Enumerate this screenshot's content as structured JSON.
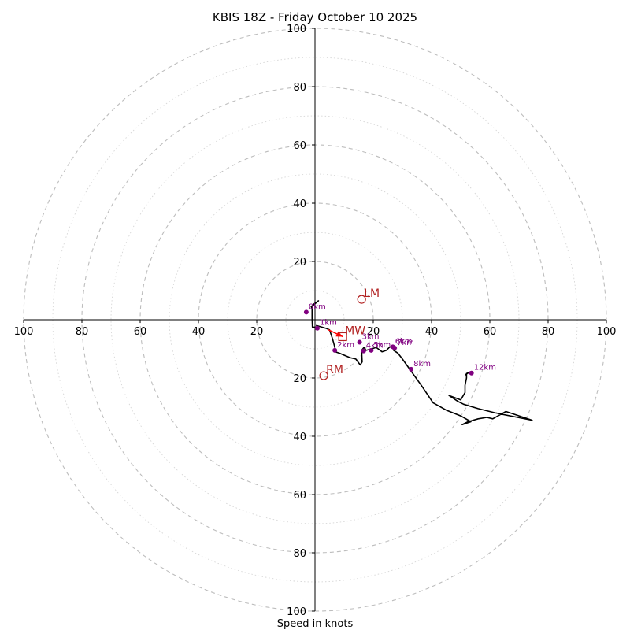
{
  "chart_data": {
    "type": "hodograph",
    "title": "KBIS 18Z - Friday October 10 2025",
    "xlabel": "Speed in knots",
    "ring_major_step": 20,
    "ring_minor_step": 10,
    "max_speed": 100,
    "x_ticks": [
      {
        "value": -100,
        "label": "100"
      },
      {
        "value": -80,
        "label": "80"
      },
      {
        "value": -60,
        "label": "60"
      },
      {
        "value": -40,
        "label": "40"
      },
      {
        "value": -20,
        "label": "20"
      },
      {
        "value": 20,
        "label": "20"
      },
      {
        "value": 40,
        "label": "40"
      },
      {
        "value": 60,
        "label": "60"
      },
      {
        "value": 80,
        "label": "80"
      },
      {
        "value": 100,
        "label": "100"
      }
    ],
    "y_ticks": [
      {
        "value": 100,
        "label": "100"
      },
      {
        "value": 80,
        "label": "80"
      },
      {
        "value": 60,
        "label": "60"
      },
      {
        "value": 40,
        "label": "40"
      },
      {
        "value": 20,
        "label": "20"
      },
      {
        "value": -20,
        "label": "20"
      },
      {
        "value": -40,
        "label": "40"
      },
      {
        "value": -60,
        "label": "60"
      },
      {
        "value": -80,
        "label": "80"
      },
      {
        "value": -100,
        "label": "100"
      }
    ],
    "trace": [
      [
        -1.2,
        4.5
      ],
      [
        0.8,
        6.2
      ],
      [
        1.2,
        6.5
      ],
      [
        -0.5,
        5.3
      ],
      [
        -1.3,
        4.5
      ],
      [
        -1.0,
        3.8
      ],
      [
        -1.0,
        0.5
      ],
      [
        -0.9,
        -2.5
      ],
      [
        1.0,
        -2.6
      ],
      [
        0.9,
        -2.8
      ],
      [
        0.5,
        -2.0
      ],
      [
        4.0,
        -3.0
      ],
      [
        5.0,
        -3.5
      ],
      [
        6.0,
        -6.5
      ],
      [
        6.8,
        -9.5
      ],
      [
        7.0,
        -11.0
      ],
      [
        8.5,
        -11.5
      ],
      [
        12.0,
        -13.0
      ],
      [
        14.0,
        -13.5
      ],
      [
        15.5,
        -15.5
      ],
      [
        16.2,
        -14.5
      ],
      [
        16.0,
        -10.5
      ],
      [
        16.8,
        -9.5
      ],
      [
        17.5,
        -10.5
      ],
      [
        19.5,
        -10.0
      ],
      [
        21.0,
        -9.5
      ],
      [
        23.0,
        -11.0
      ],
      [
        24.5,
        -10.5
      ],
      [
        25.5,
        -9.5
      ],
      [
        26.5,
        -9.0
      ],
      [
        27.0,
        -10.5
      ],
      [
        28.5,
        -11.5
      ],
      [
        30.0,
        -13.5
      ],
      [
        32.5,
        -17.0
      ],
      [
        36.5,
        -22.5
      ],
      [
        40.5,
        -28.5
      ],
      [
        45.0,
        -31.0
      ],
      [
        50.0,
        -33.0
      ],
      [
        53.5,
        -35.0
      ],
      [
        52.0,
        -35.5
      ],
      [
        50.5,
        -36.0
      ],
      [
        52.5,
        -35.0
      ],
      [
        56.0,
        -34.0
      ],
      [
        59.0,
        -33.5
      ],
      [
        61.0,
        -34.0
      ],
      [
        65.5,
        -31.5
      ],
      [
        74.5,
        -34.5
      ],
      [
        62.0,
        -32.0
      ],
      [
        56.0,
        -30.5
      ],
      [
        51.0,
        -29.0
      ],
      [
        49.0,
        -28.0
      ],
      [
        46.0,
        -26.0
      ],
      [
        50.0,
        -27.5
      ],
      [
        51.5,
        -25.0
      ],
      [
        51.5,
        -22.5
      ],
      [
        52.0,
        -20.0
      ],
      [
        52.0,
        -18.5
      ],
      [
        53.0,
        -18.0
      ],
      [
        53.5,
        -18.0
      ],
      [
        52.5,
        -18.3
      ],
      [
        51.5,
        -19.0
      ]
    ],
    "trace_color": "#000000",
    "height_markers": [
      {
        "label": "0km",
        "u": -3.0,
        "v": 2.6
      },
      {
        "label": "1km",
        "u": 0.8,
        "v": -2.9
      },
      {
        "label": "2km",
        "u": 6.8,
        "v": -10.5
      },
      {
        "label": "3km",
        "u": 15.3,
        "v": -7.7
      },
      {
        "label": "4km",
        "u": 16.7,
        "v": -10.7
      },
      {
        "label": "5km",
        "u": 19.3,
        "v": -10.5
      },
      {
        "label": "6km",
        "u": 26.7,
        "v": -9.3
      },
      {
        "label": "7km",
        "u": 27.3,
        "v": -9.7
      },
      {
        "label": "8km",
        "u": 33.0,
        "v": -17.0
      },
      {
        "label": "12km",
        "u": 53.7,
        "v": -18.3
      }
    ],
    "marker_color": "#800080",
    "storm_motions": [
      {
        "label": "LM",
        "u": 16.0,
        "v": 7.0,
        "symbol": "circle"
      },
      {
        "label": "RM",
        "u": 3.0,
        "v": -19.2,
        "symbol": "circle"
      },
      {
        "label": "MW",
        "u": 9.5,
        "v": -5.8,
        "symbol": "square"
      }
    ],
    "motion_color": "#b22222",
    "arrow": {
      "from": [
        4.5,
        -3.4
      ],
      "to": [
        9.5,
        -5.8
      ],
      "color": "#ff0000"
    }
  }
}
